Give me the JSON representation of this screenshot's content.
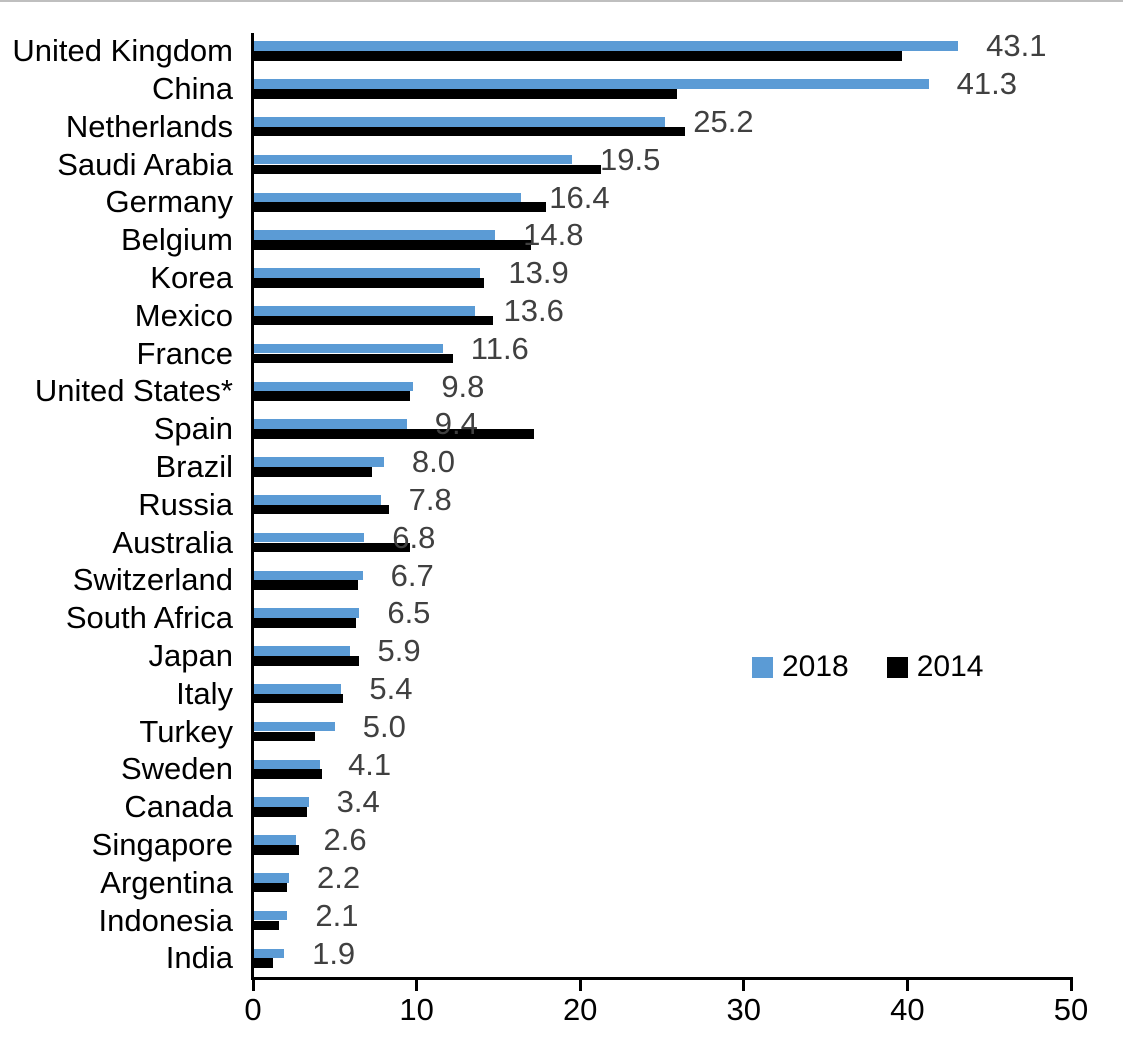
{
  "chart_data": {
    "type": "bar",
    "orientation": "horizontal",
    "title": "",
    "categories": [
      "United Kingdom",
      "China",
      "Netherlands",
      "Saudi Arabia",
      "Germany",
      "Belgium",
      "Korea",
      "Mexico",
      "France",
      "United States*",
      "Spain",
      "Brazil",
      "Russia",
      "Australia",
      "Switzerland",
      "South Africa",
      "Japan",
      "Italy",
      "Turkey",
      "Sweden",
      "Canada",
      "Singapore",
      "Argentina",
      "Indonesia",
      "India"
    ],
    "series": [
      {
        "name": "2018",
        "color": "#5B9BD5",
        "values": [
          43.1,
          41.3,
          25.2,
          19.5,
          16.4,
          14.8,
          13.9,
          13.6,
          11.6,
          9.8,
          9.4,
          8.0,
          7.8,
          6.8,
          6.7,
          6.5,
          5.9,
          5.4,
          5.0,
          4.1,
          3.4,
          2.6,
          2.2,
          2.1,
          1.9
        ],
        "data_labels": [
          "43.1",
          "41.3",
          "25.2",
          "19.5",
          "16.4",
          "14.8",
          "13.9",
          "13.6",
          "11.6",
          "9.8",
          "9.4",
          "8.0",
          "7.8",
          "6.8",
          "6.7",
          "6.5",
          "5.9",
          "5.4",
          "5.0",
          "4.1",
          "3.4",
          "2.6",
          "2.2",
          "2.1",
          "1.9"
        ]
      },
      {
        "name": "2014",
        "color": "#000000",
        "values": [
          39.7,
          25.9,
          26.4,
          21.3,
          17.9,
          17.0,
          14.1,
          14.7,
          12.2,
          9.6,
          17.2,
          7.3,
          8.3,
          9.6,
          6.4,
          6.3,
          6.5,
          5.5,
          3.8,
          4.2,
          3.3,
          2.8,
          2.1,
          1.6,
          1.2
        ]
      }
    ],
    "xlim": [
      0,
      50
    ],
    "x_ticks": [
      "0",
      "10",
      "20",
      "30",
      "40",
      "50"
    ],
    "x_tick_values": [
      0,
      10,
      20,
      30,
      40,
      50
    ],
    "grid": false,
    "legend": {
      "position": "middle-right",
      "entries": [
        "2018",
        "2014"
      ]
    },
    "value_label_color": "#404040",
    "axis_color": "#000000"
  }
}
